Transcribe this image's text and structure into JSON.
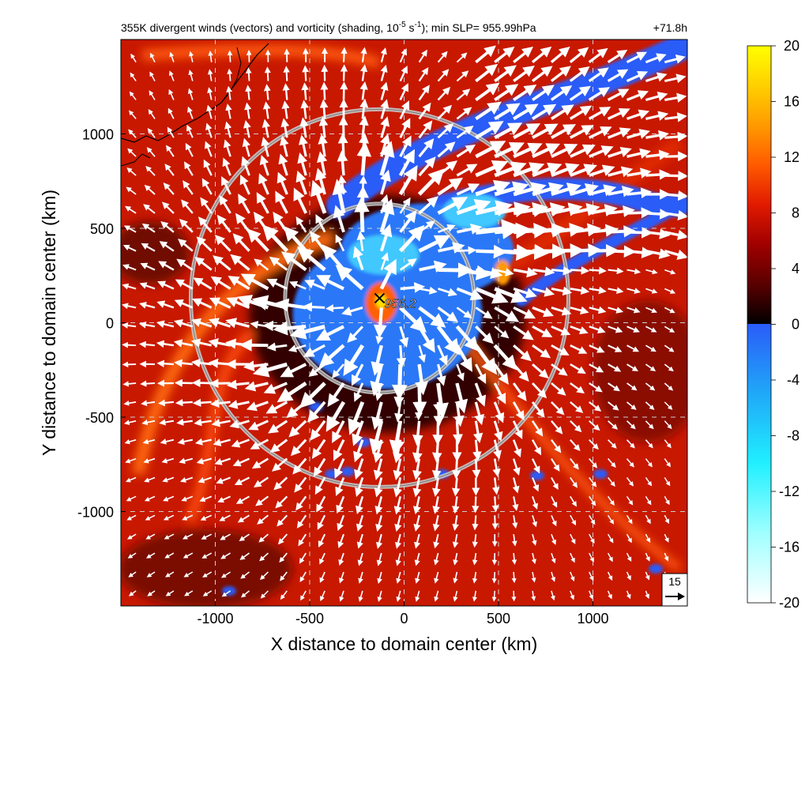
{
  "chart_data": {
    "type": "heatmap",
    "title": "355K divergent winds (vectors) and vorticity (shading, 10",
    "title_exp1": "-5",
    "title_mid": " s",
    "title_exp2": "-1",
    "title_end": "); min SLP= 955.99hPa",
    "forecast_time": "+71.8h",
    "xlabel": "X distance to domain center (km)",
    "ylabel": "Y distance to domain center (km)",
    "xlim": [
      -1500,
      1500
    ],
    "ylim": [
      -1500,
      1500
    ],
    "x_ticks": [
      -1000,
      -500,
      0,
      500,
      1000
    ],
    "x_tick_labels": [
      "-1000",
      "-500",
      "0",
      "500",
      "1000"
    ],
    "y_ticks": [
      -1000,
      -500,
      0,
      500,
      1000
    ],
    "y_tick_labels": [
      "-1000",
      "-500",
      "0",
      "500",
      "1000"
    ],
    "grid": true,
    "colorbar": {
      "min": -20,
      "max": 20,
      "ticks": [
        20,
        16,
        12,
        8,
        4,
        0,
        -4,
        -8,
        -12,
        -16,
        -20
      ],
      "tick_labels": [
        "20",
        "16",
        "12",
        "8",
        "4",
        "0",
        "-4",
        "-8",
        "-12",
        "-16",
        "-20"
      ],
      "colors_positive": [
        "#000000",
        "#5a0000",
        "#a00000",
        "#e01a00",
        "#ff5a00",
        "#ff9a00",
        "#ffd000",
        "#ffff00"
      ],
      "colors_negative": [
        "#ffffff",
        "#a0ffff",
        "#20f0ff",
        "#20a8f8",
        "#2a5cf8"
      ]
    },
    "storm_center": {
      "x": -130,
      "y": 130,
      "label": "956.2"
    },
    "rings_km": [
      500,
      1000
    ],
    "reference_vector": {
      "label": "15",
      "magnitude": 15
    },
    "colors": {
      "ring": "#c8c8c8",
      "vector": "#ffffff",
      "grid": "#cfcfcf"
    }
  }
}
